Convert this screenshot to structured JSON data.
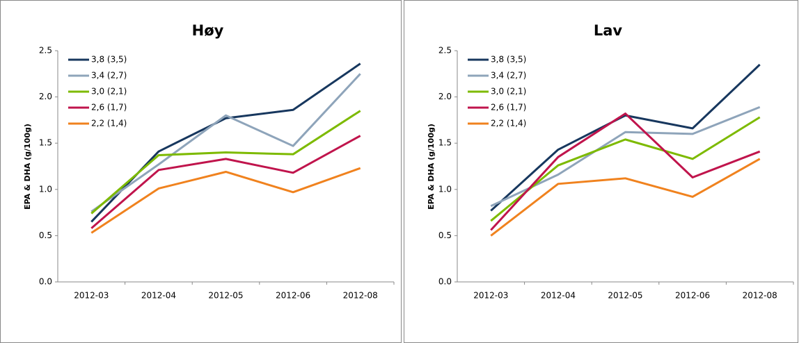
{
  "chart_data": [
    {
      "type": "line",
      "title": "Høy",
      "y_label": "EPA & DHA (g/100g)",
      "categories": [
        "2012-03",
        "2012-04",
        "2012-05",
        "2012-06",
        "2012-08"
      ],
      "ylim": [
        0,
        2.5
      ],
      "yticks": [
        {
          "value": 0,
          "label": "0.0"
        },
        0.5,
        {
          "value": 1,
          "label": "1.0"
        },
        1.5,
        {
          "value": 2,
          "label": "2.0"
        },
        2.5
      ],
      "legend": "upper-left",
      "series": [
        {
          "name": "3,8 (3,5)",
          "color": "#17375e",
          "values": [
            0.65,
            1.41,
            1.77,
            1.86,
            2.36
          ]
        },
        {
          "name": "3,4 (2,7)",
          "color": "#8ea4ba",
          "values": [
            0.76,
            1.27,
            1.8,
            1.47,
            2.25
          ]
        },
        {
          "name": "3,0 (2,1)",
          "color": "#7dba00",
          "values": [
            0.74,
            1.37,
            1.4,
            1.38,
            1.85
          ]
        },
        {
          "name": "2,6 (1,7)",
          "color": "#c0144c",
          "values": [
            0.58,
            1.21,
            1.33,
            1.18,
            1.58
          ]
        },
        {
          "name": "2,2 (1,4)",
          "color": "#f0821e",
          "values": [
            0.53,
            1.01,
            1.19,
            0.97,
            1.23
          ]
        }
      ]
    },
    {
      "type": "line",
      "title": "Lav",
      "y_label": "EPA & DHA (g/100g)",
      "categories": [
        "2012-03",
        "2012-04",
        "2012-05",
        "2012-06",
        "2012-08"
      ],
      "ylim": [
        0,
        2.5
      ],
      "yticks": [
        {
          "value": 0,
          "label": "0.0"
        },
        0.5,
        {
          "value": 1,
          "label": "1.0"
        },
        1.5,
        {
          "value": 2,
          "label": "2.0"
        },
        2.5
      ],
      "legend": "upper-left",
      "series": [
        {
          "name": "3,8 (3,5)",
          "color": "#17375e",
          "values": [
            0.77,
            1.43,
            1.8,
            1.66,
            2.35
          ]
        },
        {
          "name": "3,4 (2,7)",
          "color": "#8ea4ba",
          "values": [
            0.82,
            1.16,
            1.62,
            1.6,
            1.89
          ]
        },
        {
          "name": "3,0 (2,1)",
          "color": "#7dba00",
          "values": [
            0.66,
            1.26,
            1.54,
            1.33,
            1.78
          ]
        },
        {
          "name": "2,6 (1,7)",
          "color": "#c0144c",
          "values": [
            0.56,
            1.35,
            1.82,
            1.13,
            1.41
          ]
        },
        {
          "name": "2,2 (1,4)",
          "color": "#f0821e",
          "values": [
            0.5,
            1.06,
            1.12,
            0.92,
            1.33
          ]
        }
      ]
    }
  ]
}
